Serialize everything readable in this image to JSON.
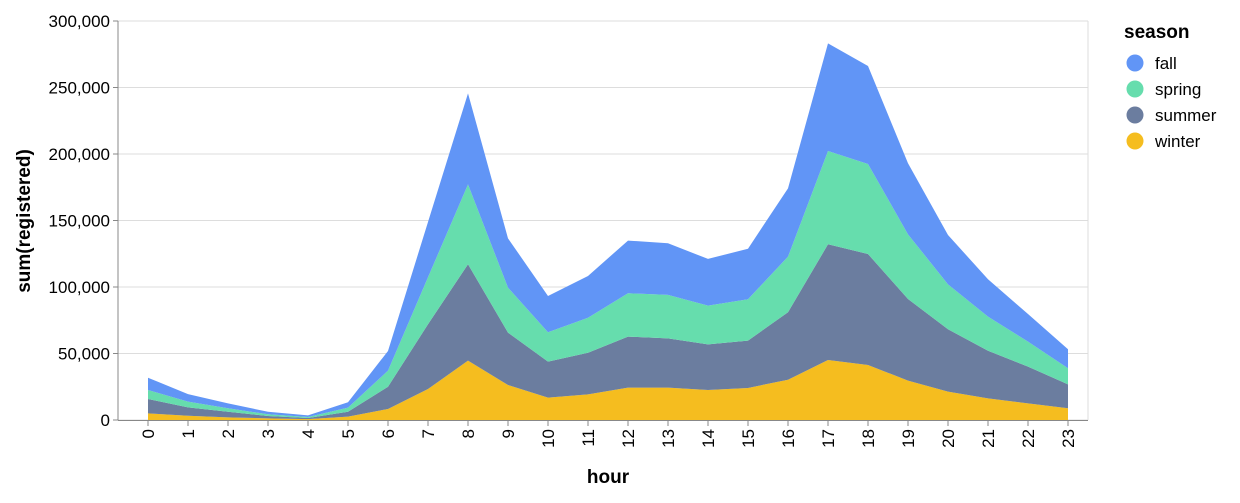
{
  "chart_data": {
    "type": "area",
    "stacked": true,
    "xlabel": "hour",
    "ylabel": "sum(registered)",
    "ylim": [
      0,
      300000
    ],
    "yticks": [
      "0",
      "50,000",
      "100,000",
      "150,000",
      "200,000",
      "250,000",
      "300,000"
    ],
    "ytick_values": [
      0,
      50000,
      100000,
      150000,
      200000,
      250000,
      300000
    ],
    "grid": true,
    "x": [
      "0",
      "1",
      "2",
      "3",
      "4",
      "5",
      "6",
      "7",
      "8",
      "9",
      "10",
      "11",
      "12",
      "13",
      "14",
      "15",
      "16",
      "17",
      "18",
      "19",
      "20",
      "21",
      "22",
      "23"
    ],
    "legend": {
      "title": "season",
      "position": "right"
    },
    "series": [
      {
        "name": "fall",
        "color": "#6195f6",
        "values": [
          9200,
          5700,
          3700,
          1900,
          1200,
          4000,
          14800,
          41600,
          68400,
          37100,
          27200,
          31400,
          39600,
          38800,
          35100,
          38000,
          51400,
          80900,
          73700,
          53400,
          37100,
          28100,
          20800,
          14300
        ]
      },
      {
        "name": "spring",
        "color": "#66ddad",
        "values": [
          6800,
          4300,
          2600,
          1300,
          800,
          3100,
          12100,
          35300,
          60100,
          33800,
          22100,
          26300,
          32600,
          32700,
          29100,
          31100,
          41800,
          70200,
          67700,
          48600,
          33800,
          25600,
          18800,
          12100
        ]
      },
      {
        "name": "summer",
        "color": "#6b7d9f",
        "values": [
          10800,
          6300,
          4200,
          1800,
          800,
          3700,
          16700,
          48700,
          72500,
          39400,
          27100,
          31300,
          38400,
          37100,
          34300,
          35600,
          50700,
          87000,
          83400,
          61400,
          46900,
          35800,
          27600,
          18000
        ]
      },
      {
        "name": "winter",
        "color": "#f5bd1f",
        "values": [
          5000,
          3200,
          2000,
          1200,
          700,
          2500,
          8300,
          23300,
          44600,
          26300,
          16800,
          19300,
          24300,
          24300,
          22600,
          24100,
          30300,
          45100,
          41400,
          29600,
          21300,
          16300,
          12500,
          8800
        ]
      }
    ]
  }
}
